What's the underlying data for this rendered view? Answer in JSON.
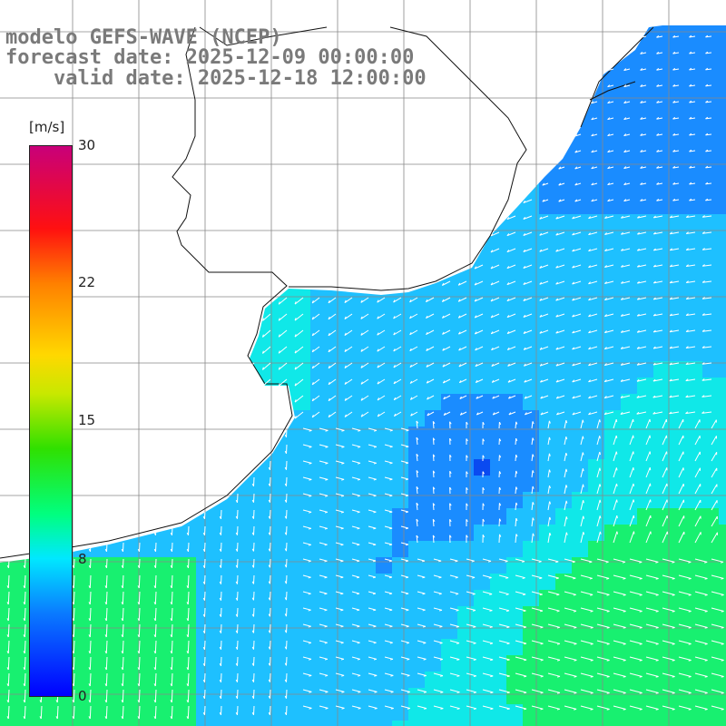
{
  "title": {
    "line1": "modelo GEFS-WAVE (NCEP)",
    "line2": "forecast date: 2025-12-09 00:00:00",
    "line3": "    valid date: 2025-12-18 12:00:00"
  },
  "colorbar": {
    "units": "[m/s]",
    "min": 0,
    "max": 30,
    "tick_labels": [
      "30",
      "22",
      "15",
      "8",
      "0"
    ],
    "tick_values": [
      30,
      22,
      15,
      8,
      0
    ],
    "colors": [
      "#0000ff",
      "#0a7aff",
      "#00c8ff",
      "#00ffe0",
      "#00e060",
      "#20e000",
      "#a0e000",
      "#ffee00",
      "#ff9900",
      "#ff2000",
      "#e00040",
      "#c8006e"
    ]
  },
  "map": {
    "ocean_colors": {
      "deep_blue": "#0a4af0",
      "blue": "#1a8cff",
      "light_blue": "#1ec0ff",
      "cyan": "#10e8e8",
      "green": "#18f070",
      "land": "#ffffff",
      "coast": "#111111",
      "grid": "#888888",
      "arrow": "#ffffff"
    }
  }
}
